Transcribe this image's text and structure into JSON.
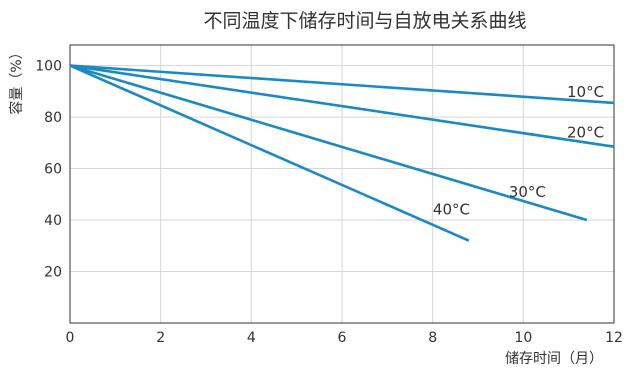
{
  "chart_data": {
    "type": "line",
    "title": "不同温度下储存时间与自放电关系曲线",
    "xlabel": "储存时间（月）",
    "ylabel": "容量（%）",
    "xlim": [
      0,
      12
    ],
    "ylim": [
      0,
      108
    ],
    "x_ticks": [
      0,
      2,
      4,
      6,
      8,
      10,
      12
    ],
    "y_ticks": [
      20,
      40,
      60,
      80,
      100
    ],
    "grid": true,
    "line_color": "#1a8ac6",
    "series": [
      {
        "name": "10°C",
        "x": [
          0,
          12.0
        ],
        "y": [
          100,
          85.5
        ]
      },
      {
        "name": "20°C",
        "x": [
          0,
          12.0
        ],
        "y": [
          100,
          68.5
        ]
      },
      {
        "name": "30°C",
        "x": [
          0,
          11.4
        ],
        "y": [
          100,
          40.0
        ]
      },
      {
        "name": "40°C",
        "x": [
          0,
          8.8
        ],
        "y": [
          100,
          32.0
        ]
      }
    ]
  }
}
